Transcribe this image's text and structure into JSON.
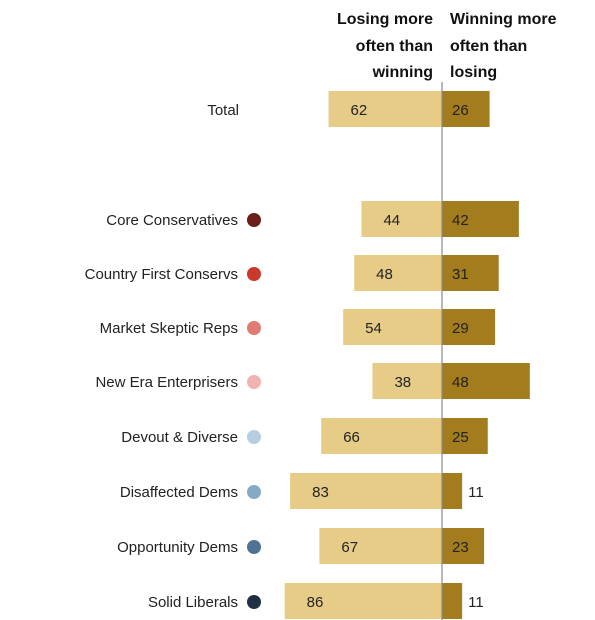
{
  "chart_data": {
    "type": "bar",
    "headers": {
      "left": [
        "Losing more",
        "often than",
        "winning"
      ],
      "right": [
        "Winning more",
        "often than",
        "losing"
      ]
    },
    "categories": [
      "Total",
      "Core Conservatives",
      "Country First Conservs",
      "Market Skeptic Reps",
      "New Era Enterprisers",
      "Devout & Diverse",
      "Disaffected Dems",
      "Opportunity Dems",
      "Solid Liberals"
    ],
    "dot_colors": [
      null,
      "#6b1e1a",
      "#c9392c",
      "#e07a72",
      "#f0b3ad",
      "#b7cde0",
      "#86a9c6",
      "#4f7395",
      "#1f2f44"
    ],
    "series": [
      {
        "values": [
          62,
          44,
          48,
          54,
          38,
          66,
          83,
          67,
          86
        ],
        "color": "#e6cc86"
      },
      {
        "values": [
          26,
          42,
          31,
          29,
          48,
          25,
          11,
          23,
          11
        ],
        "color": "#a27c1d"
      }
    ]
  }
}
